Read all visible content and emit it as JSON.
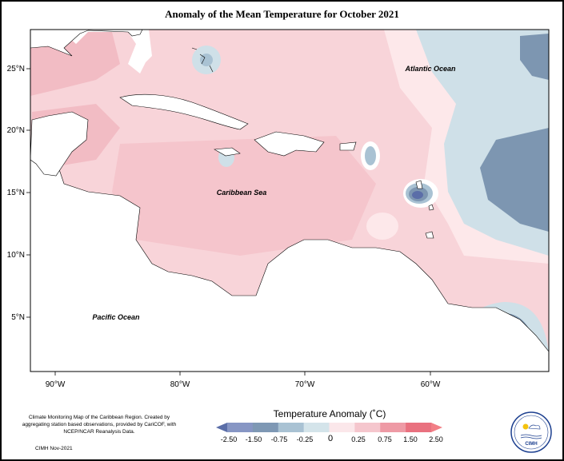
{
  "title": "Anomaly of the Mean Temperature for October 2021",
  "map_labels": {
    "atlantic": "Atlantic Ocean",
    "caribbean": "Caribbean Sea",
    "pacific": "Pacific Ocean"
  },
  "lat_ticks": [
    "25°N",
    "20°N",
    "15°N",
    "10°N",
    "5°N"
  ],
  "lon_ticks": [
    "90°W",
    "80°W",
    "70°W",
    "60°W"
  ],
  "legend": {
    "title": "Temperature Anomaly (˚C)",
    "labels": [
      "-2.50",
      "-1.50",
      "-0.75",
      "-0.25",
      "0",
      "0.25",
      "0.75",
      "1.50",
      "2.50"
    ],
    "colors": [
      "#5b6ea8",
      "#8796c4",
      "#7e98b4",
      "#a9c2d3",
      "#d4e4ea",
      "#fbe7ea",
      "#f5c6cd",
      "#ee9aa5",
      "#e9717f",
      "#f27f86"
    ]
  },
  "credits": {
    "text": "Climate Monitoring Map of the Caribbean Region. Created by aggregating station based observations, provided by CariCOF, with NCEP/NCAR Reanalysis Data.",
    "date": "CIMH Nov-2021"
  },
  "logo": {
    "name": "CIMH"
  },
  "colors": {
    "anomaly_positive_light": "#f8d4d9",
    "anomaly_positive": "#f3c0c7",
    "anomaly_negative_light": "#cfe0e8",
    "anomaly_negative": "#7d96b1",
    "anomaly_negative_strong": "#a4aef0",
    "land": "#ffffff"
  }
}
